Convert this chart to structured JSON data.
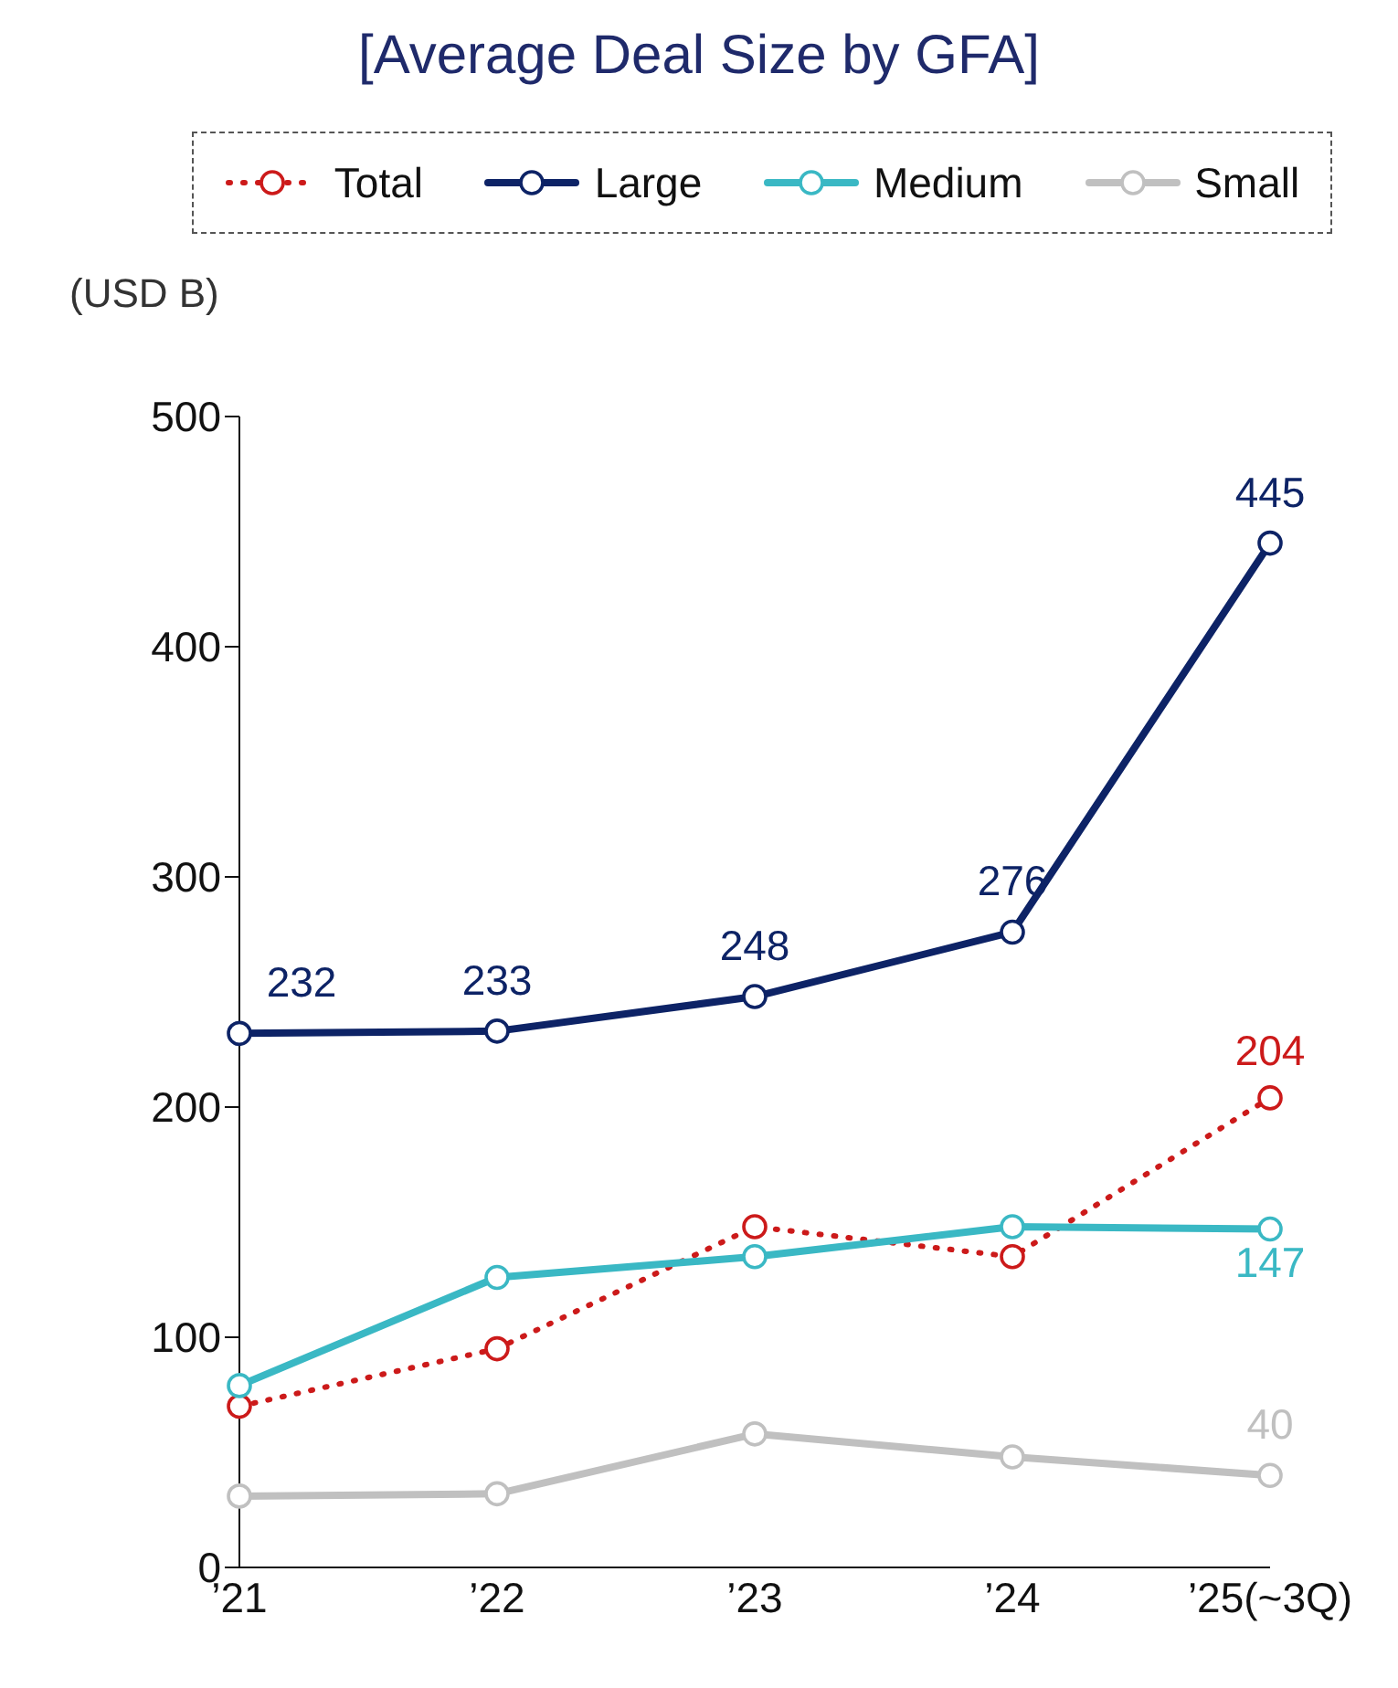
{
  "chart_data": {
    "type": "line",
    "title": "[Average Deal Size by GFA]",
    "ylabel": "(USD B)",
    "categories": [
      "’21",
      "’22",
      "’23",
      "’24",
      "’25(~3Q)"
    ],
    "ylim": [
      0,
      500
    ],
    "yticks": [
      0,
      100,
      200,
      300,
      400,
      500
    ],
    "grid": false,
    "legend": "top",
    "marker": "circle",
    "series": [
      {
        "name": "Total",
        "color": "#cc1a1a",
        "line_style": "dotted",
        "values": [
          70,
          95,
          148,
          135,
          204
        ],
        "value_labels": [
          null,
          null,
          null,
          null,
          "204"
        ]
      },
      {
        "name": "Large",
        "color": "#0d2366",
        "line_style": "solid",
        "values": [
          232,
          233,
          248,
          276,
          445
        ],
        "value_labels": [
          "232",
          "233",
          "248",
          "276",
          "445"
        ]
      },
      {
        "name": "Medium",
        "color": "#3ab8c4",
        "line_style": "solid",
        "values": [
          79,
          126,
          135,
          148,
          147
        ],
        "value_labels": [
          null,
          null,
          null,
          null,
          "147"
        ]
      },
      {
        "name": "Small",
        "color": "#c0c0c0",
        "line_style": "solid",
        "values": [
          31,
          32,
          58,
          48,
          40
        ],
        "value_labels": [
          null,
          null,
          null,
          null,
          "40"
        ]
      }
    ]
  }
}
